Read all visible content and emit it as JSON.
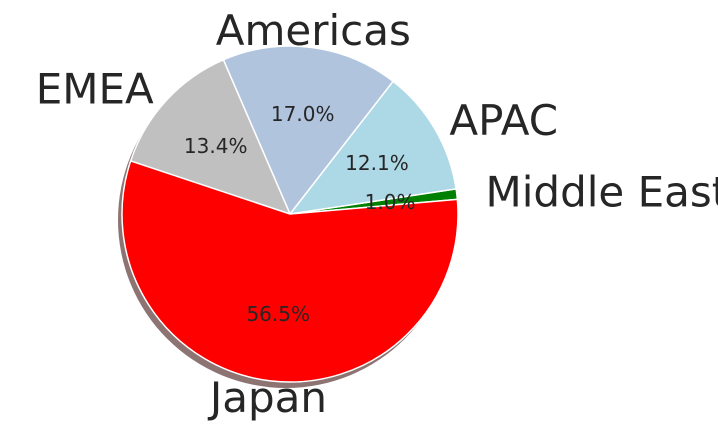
{
  "chart_data": {
    "type": "pie",
    "title": "",
    "slices": [
      {
        "label": "Middle East",
        "value": 1.0,
        "pct_label": "1.0%",
        "color": "#008000"
      },
      {
        "label": "APAC",
        "value": 12.1,
        "pct_label": "12.1%",
        "color": "#add8e6"
      },
      {
        "label": "Americas",
        "value": 17.0,
        "pct_label": "17.0%",
        "color": "#b0c4de"
      },
      {
        "label": "EMEA",
        "value": 13.4,
        "pct_label": "13.4%",
        "color": "#c0c0c0"
      },
      {
        "label": "Japan",
        "value": 56.5,
        "pct_label": "56.5%",
        "color": "#ff0000"
      }
    ],
    "shadow": true,
    "start_angle_deg": 5
  }
}
